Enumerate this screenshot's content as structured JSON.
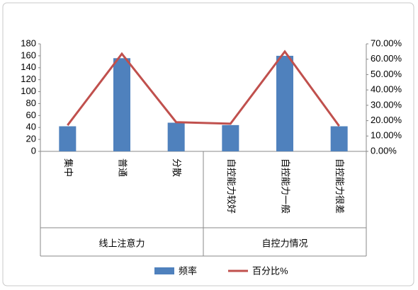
{
  "chart_data": {
    "type": "bar-line",
    "categories": [
      "集中",
      "普通",
      "分散",
      "自控能力较好",
      "自控能力一般",
      "自控能力很差"
    ],
    "group_labels": [
      "线上注意力",
      "自控力情况"
    ],
    "series": [
      {
        "name": "频率",
        "color": "#4f81bd",
        "type": "bar",
        "values": [
          42,
          156,
          48,
          44,
          160,
          42
        ]
      },
      {
        "name": "百分比%",
        "color": "#c0504d",
        "type": "line",
        "axis": "y2",
        "values": [
          17.0,
          63.5,
          19.0,
          18.0,
          65.0,
          16.5
        ]
      }
    ],
    "ylim": [
      0,
      180
    ],
    "yticks": [
      0,
      20,
      40,
      60,
      80,
      100,
      120,
      140,
      160,
      180
    ],
    "y2lim": [
      0,
      70
    ],
    "y2ticks": [
      {
        "value": 0,
        "label": "0.00%"
      },
      {
        "value": 10,
        "label": "10.00%"
      },
      {
        "value": 20,
        "label": "20.00%"
      },
      {
        "value": 30,
        "label": "30.00%"
      },
      {
        "value": 40,
        "label": "40.00%"
      },
      {
        "value": 50,
        "label": "50.00%"
      },
      {
        "value": 60,
        "label": "60.00%"
      },
      {
        "value": 70,
        "label": "70.00%"
      }
    ],
    "legend": "bottom"
  }
}
